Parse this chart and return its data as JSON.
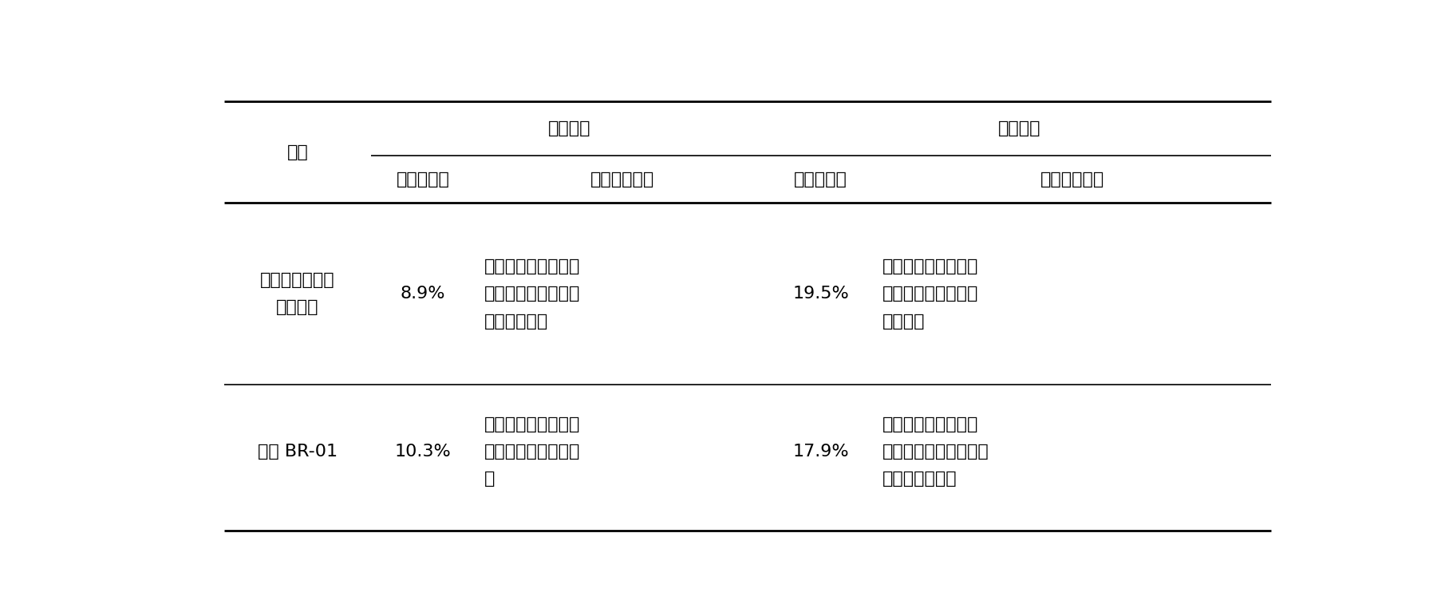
{
  "figsize": [
    18.01,
    7.67
  ],
  "dpi": 100,
  "background_color": "#ffffff",
  "text_color": "#000000",
  "line_color": "#000000",
  "font_size": 16,
  "header_font_size": 16,
  "rows": [
    {
      "sample": "添加相应量丙二\n醇和甘油",
      "dry_rate": "8.9%",
      "dry_eval": "烟丝较为干燥，口腔\n刺激性增大，残留明\n显，香气变差",
      "wet_rate": "19.5%",
      "wet_eval": "烟丝明显软化，硬度\n下降，香气发闷，透\n发性下降"
    },
    {
      "sample": "添加 BR-01",
      "dry_rate": "10.3%",
      "dry_eval": "烟丝较为柔软，香气\n变化较少，刺激性稍\n有",
      "wet_rate": "17.9%",
      "wet_eval": "烟丝有所软化，湿度\n稍好。烟香变化较小，\n香气透发性加好"
    }
  ]
}
